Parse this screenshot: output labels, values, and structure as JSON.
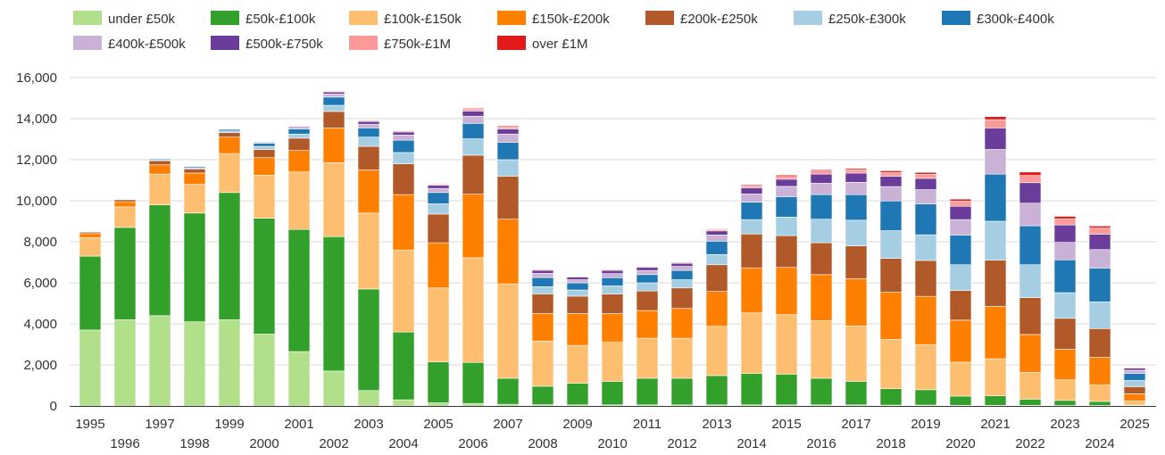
{
  "chart_data": {
    "type": "bar",
    "stacked": true,
    "title": "",
    "xlabel": "",
    "ylabel": "",
    "ylim": [
      0,
      16000
    ],
    "yticks": [
      0,
      2000,
      4000,
      6000,
      8000,
      10000,
      12000,
      14000,
      16000
    ],
    "ytick_labels": [
      "0",
      "2,000",
      "4,000",
      "6,000",
      "8,000",
      "10,000",
      "12,000",
      "14,000",
      "16,000"
    ],
    "grid": true,
    "legend_position": "top-left",
    "categories": [
      "1995",
      "1996",
      "1997",
      "1998",
      "1999",
      "2000",
      "2001",
      "2002",
      "2003",
      "2004",
      "2005",
      "2006",
      "2007",
      "2008",
      "2009",
      "2010",
      "2011",
      "2012",
      "2013",
      "2014",
      "2015",
      "2016",
      "2017",
      "2018",
      "2019",
      "2020",
      "2021",
      "2022",
      "2023",
      "2024",
      "2025"
    ],
    "series": [
      {
        "name": "under £50k",
        "color": "#b2df8a",
        "values": [
          3700,
          4200,
          4400,
          4100,
          4200,
          3500,
          2650,
          1700,
          750,
          300,
          150,
          120,
          80,
          60,
          50,
          50,
          50,
          50,
          50,
          50,
          50,
          50,
          50,
          40,
          40,
          30,
          30,
          30,
          20,
          20,
          10
        ]
      },
      {
        "name": "£50k-£100k",
        "color": "#33a02c",
        "values": [
          3600,
          4500,
          5400,
          5300,
          6200,
          5650,
          5950,
          6550,
          4950,
          3300,
          2000,
          2000,
          1270,
          900,
          1050,
          1150,
          1300,
          1300,
          1430,
          1530,
          1500,
          1300,
          1150,
          800,
          750,
          450,
          470,
          300,
          250,
          200,
          30
        ]
      },
      {
        "name": "£100k-£150k",
        "color": "#fdbf6f",
        "values": [
          900,
          1000,
          1500,
          1400,
          1900,
          2100,
          2800,
          3600,
          3700,
          4000,
          3600,
          5100,
          4600,
          2200,
          1850,
          1900,
          1950,
          1950,
          2400,
          2950,
          2900,
          2800,
          2700,
          2400,
          2200,
          1650,
          1800,
          1300,
          1000,
          800,
          200
        ]
      },
      {
        "name": "£150k-£200k",
        "color": "#ff7f00",
        "values": [
          200,
          250,
          450,
          550,
          800,
          850,
          1050,
          1700,
          2100,
          2700,
          2200,
          3100,
          3150,
          1350,
          1550,
          1400,
          1350,
          1450,
          1700,
          2200,
          2300,
          2250,
          2300,
          2300,
          2350,
          2050,
          2550,
          1850,
          1500,
          1350,
          350
        ]
      },
      {
        "name": "£200k-£250k",
        "color": "#b15928",
        "values": [
          70,
          100,
          200,
          200,
          220,
          400,
          600,
          800,
          1150,
          1500,
          1400,
          1900,
          2100,
          950,
          850,
          950,
          950,
          1000,
          1300,
          1650,
          1550,
          1550,
          1600,
          1650,
          1750,
          1450,
          2250,
          1800,
          1500,
          1400,
          350
        ]
      },
      {
        "name": "£250k-£300k",
        "color": "#a6cee3",
        "values": [
          20,
          30,
          50,
          60,
          80,
          150,
          200,
          300,
          450,
          550,
          500,
          800,
          800,
          350,
          300,
          400,
          400,
          400,
          500,
          700,
          900,
          1150,
          1250,
          1350,
          1250,
          1250,
          1900,
          1600,
          1250,
          1300,
          300
        ]
      },
      {
        "name": "£300k-£400k",
        "color": "#1f78b4",
        "values": [
          20,
          30,
          50,
          60,
          80,
          150,
          250,
          400,
          450,
          600,
          550,
          750,
          850,
          450,
          350,
          400,
          400,
          450,
          650,
          850,
          1000,
          1200,
          1250,
          1450,
          1500,
          1450,
          2300,
          1900,
          1600,
          1650,
          350
        ]
      },
      {
        "name": "£400k-£500k",
        "color": "#cab2d6",
        "values": [
          10,
          10,
          20,
          30,
          30,
          50,
          80,
          150,
          180,
          250,
          200,
          350,
          400,
          200,
          150,
          200,
          200,
          200,
          300,
          400,
          500,
          550,
          600,
          700,
          700,
          750,
          1200,
          1100,
          850,
          900,
          150
        ]
      },
      {
        "name": "£500k-£750k",
        "color": "#6a3d9a",
        "values": [
          10,
          10,
          15,
          20,
          25,
          40,
          50,
          100,
          130,
          150,
          150,
          250,
          250,
          150,
          130,
          150,
          150,
          150,
          200,
          300,
          350,
          450,
          450,
          500,
          550,
          650,
          1050,
          1000,
          850,
          750,
          100
        ]
      },
      {
        "name": "£750k-£1M",
        "color": "#fb9a99",
        "values": [
          5,
          5,
          10,
          10,
          10,
          15,
          20,
          40,
          50,
          60,
          60,
          100,
          100,
          50,
          40,
          50,
          50,
          50,
          70,
          100,
          130,
          150,
          150,
          180,
          200,
          250,
          400,
          350,
          300,
          300,
          50
        ]
      },
      {
        "name": "over £1M",
        "color": "#e31a1c",
        "values": [
          0,
          0,
          5,
          5,
          5,
          5,
          10,
          10,
          15,
          15,
          20,
          40,
          50,
          20,
          20,
          20,
          20,
          20,
          30,
          50,
          70,
          60,
          70,
          90,
          90,
          100,
          150,
          170,
          120,
          100,
          10
        ]
      }
    ]
  }
}
